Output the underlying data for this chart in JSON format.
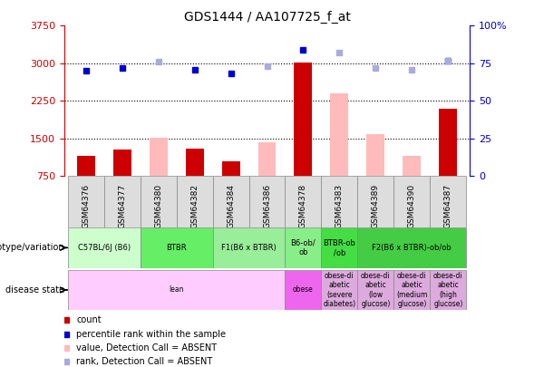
{
  "title": "GDS1444 / AA107725_f_at",
  "samples": [
    "GSM64376",
    "GSM64377",
    "GSM64380",
    "GSM64382",
    "GSM64384",
    "GSM64386",
    "GSM64378",
    "GSM64383",
    "GSM64389",
    "GSM64390",
    "GSM64387"
  ],
  "count_present": [
    1150,
    1280,
    null,
    1300,
    1050,
    null,
    3020,
    null,
    null,
    null,
    2100
  ],
  "count_absent": [
    null,
    null,
    1520,
    null,
    null,
    1430,
    null,
    2400,
    1580,
    1150,
    null
  ],
  "rank_present": [
    70,
    72,
    null,
    71,
    68,
    null,
    84,
    null,
    null,
    null,
    77
  ],
  "rank_absent": [
    null,
    null,
    76,
    null,
    null,
    73,
    null,
    82,
    72,
    71,
    77
  ],
  "ylim_left": [
    750,
    3750
  ],
  "ylim_right": [
    0,
    100
  ],
  "yticks_left": [
    750,
    1500,
    2250,
    3000,
    3750
  ],
  "yticks_right": [
    0,
    25,
    50,
    75,
    100
  ],
  "hlines": [
    1500,
    2250,
    3000
  ],
  "left_axis_color": "#cc0000",
  "right_axis_color": "#0000cc",
  "genotype_groups": [
    {
      "label": "C57BL/6J (B6)",
      "cols": [
        0,
        1
      ],
      "color": "#ccffcc"
    },
    {
      "label": "BTBR",
      "cols": [
        2,
        3
      ],
      "color": "#66ee66"
    },
    {
      "label": "F1(B6 x BTBR)",
      "cols": [
        4,
        5
      ],
      "color": "#99ee99"
    },
    {
      "label": "B6-ob/\nob",
      "cols": [
        6
      ],
      "color": "#88ee88"
    },
    {
      "label": "BTBR-ob\n/ob",
      "cols": [
        7
      ],
      "color": "#44dd44"
    },
    {
      "label": "F2(B6 x BTBR)-ob/ob",
      "cols": [
        8,
        9,
        10
      ],
      "color": "#44cc44"
    }
  ],
  "disease_groups": [
    {
      "label": "lean",
      "cols": [
        0,
        1,
        2,
        3,
        4,
        5
      ],
      "color": "#ffccff"
    },
    {
      "label": "obese",
      "cols": [
        6
      ],
      "color": "#ee66ee"
    },
    {
      "label": "obese-di\nabetic\n(severe\ndiabetes)",
      "cols": [
        7
      ],
      "color": "#ddaadd"
    },
    {
      "label": "obese-di\nabetic\n(low\nglucose)",
      "cols": [
        8
      ],
      "color": "#ddaadd"
    },
    {
      "label": "obese-di\nabetic\n(medium\nglucose)",
      "cols": [
        9
      ],
      "color": "#ddaadd"
    },
    {
      "label": "obese-di\nabetic\n(high\nglucose)",
      "cols": [
        10
      ],
      "color": "#ddaadd"
    }
  ],
  "color_bar_present": "#cc0000",
  "color_bar_absent": "#ffbbbb",
  "color_rank_present": "#0000cc",
  "color_rank_absent": "#aaaadd",
  "color_xtick_bg": "#dddddd",
  "marker_size": 5
}
